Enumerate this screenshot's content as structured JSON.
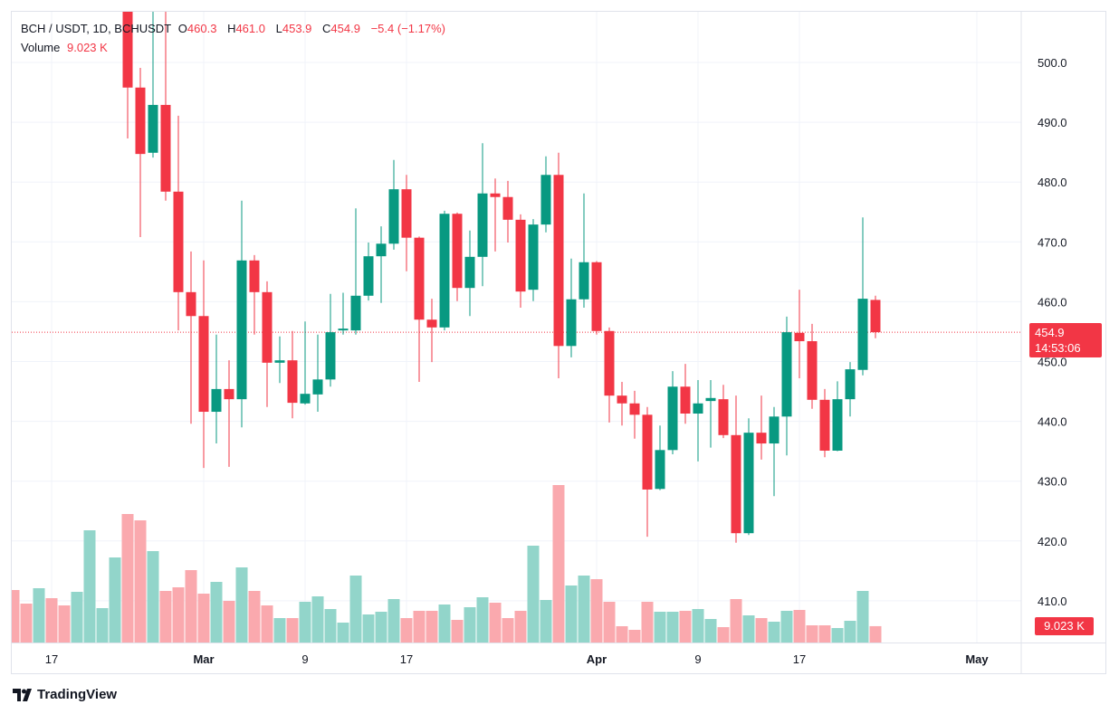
{
  "legend": {
    "symbol": "BCH / USDT, 1D, BCHUSDT",
    "o_label": "O",
    "o": "460.3",
    "h_label": "H",
    "h": "461.0",
    "l_label": "L",
    "l": "453.9",
    "c_label": "C",
    "c": "454.9",
    "change": "−5.4 (−1.17%)",
    "volume_label": "Volume",
    "volume": "9.023 K"
  },
  "price_label": {
    "price": "454.9",
    "countdown": "14:53:06"
  },
  "volume_axis_label": "9.023 K",
  "logo": {
    "text": "TradingView"
  },
  "colors": {
    "up": "#089981",
    "down": "#f23645",
    "up_volume": "#92d5ca",
    "down_volume": "#faa9ae",
    "grid": "#f0f3fa"
  },
  "chart_data": {
    "type": "candlestick",
    "title": "BCH / USDT, 1D, BCHUSDT",
    "ylim": [
      403,
      508.6
    ],
    "y_ticks": [
      500,
      490,
      480,
      470,
      460,
      450,
      440,
      430,
      420,
      410
    ],
    "y_tick_labels": [
      "500.0",
      "490.0",
      "480.0",
      "470.0",
      "460.0",
      "450.0",
      "440.0",
      "430.0",
      "420.0",
      "410.0"
    ],
    "x_ticks": [
      {
        "label": "17",
        "day_index": 3
      },
      {
        "label": "Mar",
        "day_index": 15
      },
      {
        "label": "9",
        "day_index": 23
      },
      {
        "label": "17",
        "day_index": 31
      },
      {
        "label": "Apr",
        "day_index": 46
      },
      {
        "label": "9",
        "day_index": 54
      },
      {
        "label": "17",
        "day_index": 62
      },
      {
        "label": "May",
        "day_index": 76
      }
    ],
    "last_price": 454.9,
    "volume_unit": "K",
    "candles_ohlc": [
      null,
      null,
      null,
      null,
      null,
      null,
      null,
      null,
      null,
      [
        512,
        515,
        487.3,
        495.8
      ],
      [
        495.8,
        499.1,
        470.8,
        484.7
      ],
      [
        484.9,
        510,
        484.1,
        492.9
      ],
      [
        492.9,
        510,
        476.9,
        478.4
      ],
      [
        478.4,
        491.1,
        455.2,
        461.6
      ],
      [
        461.6,
        468.4,
        439.6,
        457.6
      ],
      [
        457.6,
        466.9,
        432.2,
        441.6
      ],
      [
        441.6,
        454.5,
        436.3,
        445.4
      ],
      [
        445.4,
        450.2,
        432.4,
        443.7
      ],
      [
        443.7,
        476.9,
        439.0,
        466.9
      ],
      [
        466.9,
        467.8,
        454.5,
        461.6
      ],
      [
        461.6,
        463.4,
        442.4,
        449.8
      ],
      [
        449.8,
        454.2,
        446.4,
        450.2
      ],
      [
        450.2,
        455.1,
        440.5,
        443.1
      ],
      [
        443.0,
        456.7,
        442.8,
        444.6
      ],
      [
        444.5,
        454.5,
        441.6,
        447.0
      ],
      [
        447.0,
        461.3,
        445.8,
        454.9
      ],
      [
        455.2,
        461.5,
        454.5,
        455.5
      ],
      [
        455.2,
        475.6,
        454.5,
        461.0
      ],
      [
        461.0,
        469.9,
        460.2,
        467.6
      ],
      [
        467.6,
        472.6,
        459.8,
        469.7
      ],
      [
        469.7,
        483.7,
        468.7,
        478.8
      ],
      [
        478.8,
        481.2,
        465.1,
        470.7
      ],
      [
        470.7,
        470.9,
        446.6,
        457.0
      ],
      [
        457.0,
        460.5,
        449.9,
        455.7
      ],
      [
        455.7,
        475.2,
        455.2,
        474.7
      ],
      [
        474.7,
        474.9,
        460.1,
        462.3
      ],
      [
        462.3,
        471.9,
        457.6,
        467.5
      ],
      [
        467.5,
        486.5,
        462.6,
        478.1
      ],
      [
        478.1,
        480.6,
        468.4,
        477.5
      ],
      [
        477.5,
        480.2,
        469.9,
        473.7
      ],
      [
        473.7,
        474.6,
        459.0,
        461.7
      ],
      [
        462.0,
        473.8,
        460.1,
        472.9
      ],
      [
        472.9,
        484.3,
        471.6,
        481.2
      ],
      [
        481.2,
        484.9,
        447.2,
        452.6
      ],
      [
        452.6,
        467.2,
        450.7,
        460.4
      ],
      [
        460.4,
        478.1,
        459.0,
        466.6
      ],
      [
        466.6,
        466.8,
        454.5,
        455.1
      ],
      [
        455.1,
        455.7,
        439.8,
        444.3
      ],
      [
        444.3,
        446.6,
        439.3,
        443.0
      ],
      [
        443.0,
        445.1,
        437.1,
        441.1
      ],
      [
        441.1,
        442.4,
        420.7,
        428.6
      ],
      [
        428.7,
        439.3,
        428.5,
        435.2
      ],
      [
        435.2,
        448.4,
        434.5,
        445.8
      ],
      [
        445.8,
        449.6,
        439.6,
        441.3
      ],
      [
        441.3,
        446.9,
        433.3,
        443.0
      ],
      [
        443.4,
        446.9,
        435.6,
        443.9
      ],
      [
        443.7,
        446.1,
        437.2,
        437.7
      ],
      [
        437.7,
        444.3,
        419.7,
        421.3
      ],
      [
        421.3,
        440.5,
        421.0,
        438.1
      ],
      [
        438.1,
        444.3,
        433.6,
        436.3
      ],
      [
        436.3,
        442.4,
        427.5,
        440.8
      ],
      [
        440.8,
        457.5,
        434.3,
        454.9
      ],
      [
        454.8,
        462.0,
        447.2,
        453.4
      ],
      [
        453.4,
        456.3,
        442.1,
        443.6
      ],
      [
        443.6,
        445.4,
        434.0,
        435.1
      ],
      [
        435.1,
        446.7,
        435.0,
        443.7
      ],
      [
        443.7,
        449.9,
        440.8,
        448.7
      ],
      [
        448.6,
        474.1,
        447.7,
        460.5
      ],
      [
        460.3,
        461.0,
        453.9,
        454.9
      ]
    ],
    "volume_direction": [
      "down",
      "down",
      "up",
      "down",
      "down",
      "up",
      "up",
      "up",
      "up",
      "down",
      "down",
      "up",
      "down",
      "down",
      "down",
      "down",
      "up",
      "down",
      "up",
      "down",
      "down",
      "up",
      "down",
      "up",
      "up",
      "up",
      "up",
      "up",
      "up",
      "up",
      "up",
      "down",
      "down",
      "down",
      "up",
      "down",
      "up",
      "up",
      "down",
      "down",
      "down",
      "up",
      "up",
      "down",
      "up",
      "up",
      "down",
      "down",
      "down",
      "down",
      "down",
      "up",
      "up",
      "down",
      "up",
      "up",
      "down",
      "down",
      "up",
      "down",
      "up",
      "up",
      "down",
      "down",
      "down",
      "up",
      "up",
      "up",
      "down"
    ],
    "volumes": [
      29,
      21.5,
      30,
      24.5,
      20.5,
      28,
      62,
      19,
      47,
      71,
      67.5,
      50.5,
      28.5,
      30.5,
      40,
      27,
      33.5,
      23,
      41.5,
      28.5,
      20.5,
      13.5,
      13.5,
      22.5,
      25.5,
      18.5,
      11,
      37,
      15.5,
      17,
      24,
      13.5,
      17.5,
      17.5,
      21,
      12.5,
      19.5,
      25,
      22,
      13.5,
      17.5,
      53.5,
      23.5,
      87,
      31.5,
      37,
      35,
      22.5,
      9,
      7,
      22.5,
      17,
      17,
      17.5,
      18.5,
      13,
      8.5,
      24,
      15,
      13.5,
      11.5,
      17.5,
      18,
      9.5,
      9.5,
      8,
      12,
      28.5,
      9.023
    ]
  }
}
